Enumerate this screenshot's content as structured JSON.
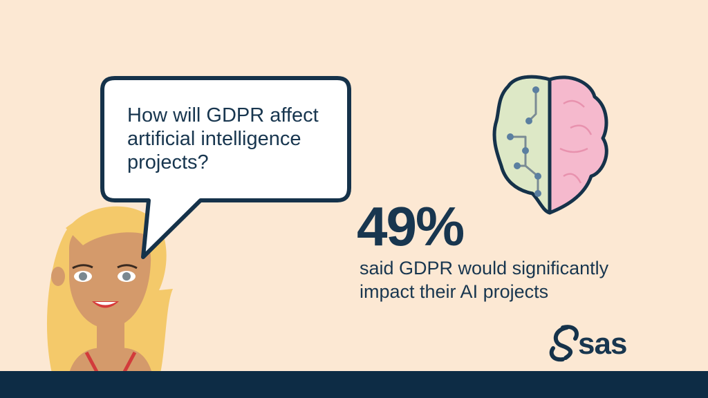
{
  "bubble": {
    "lines": [
      "How will GDPR affect",
      "artificial intelligence",
      "projects?"
    ]
  },
  "stat": {
    "value": "49%",
    "caption_lines": [
      "said GDPR would significantly",
      "impact their AI projects"
    ]
  },
  "logo": "sas"
}
